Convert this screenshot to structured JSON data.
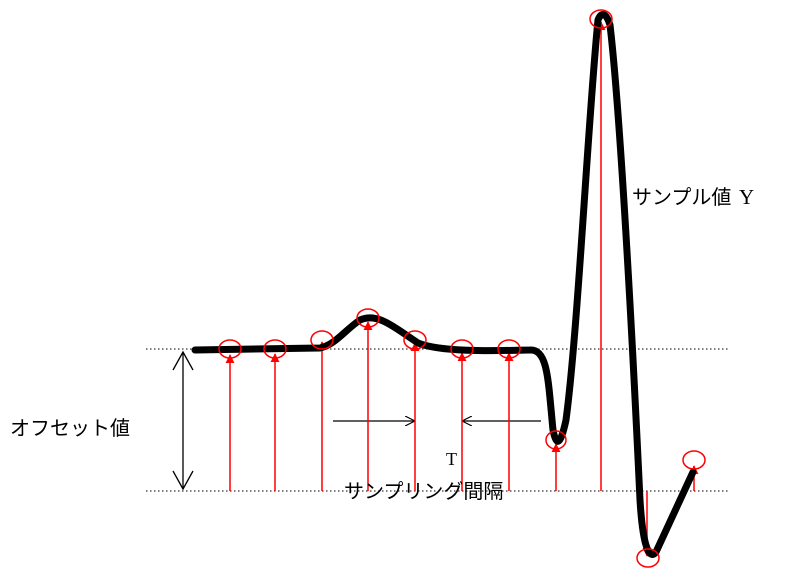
{
  "labels": {
    "sample_value": "サンプル値",
    "sample_value_symbol": "Y",
    "offset_value": "オフセット値",
    "interval_symbol": "T",
    "sampling_interval": "サンプリング間隔"
  },
  "colors": {
    "waveform": "#000000",
    "sample_arrow": "#ff0000",
    "sample_marker": "#ff0000",
    "guide_line": "#000000"
  },
  "samples": {
    "count": 11,
    "directions": [
      "up",
      "up",
      "up",
      "up",
      "up",
      "up",
      "up",
      "up",
      "up",
      "down",
      "up"
    ]
  }
}
